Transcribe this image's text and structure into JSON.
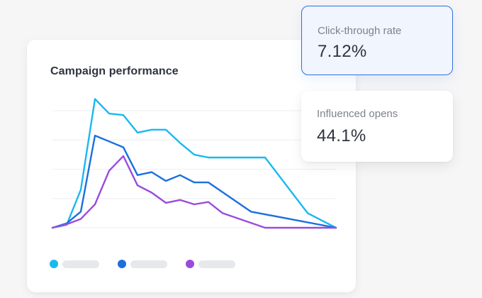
{
  "card": {
    "title": "Campaign performance"
  },
  "chart_data": {
    "type": "line",
    "title": "Campaign performance",
    "xlabel": "",
    "ylabel": "",
    "x": [
      0,
      1,
      2,
      3,
      4,
      5,
      6,
      7,
      8,
      9,
      10,
      11,
      12,
      13,
      14,
      15,
      16,
      17,
      18,
      19,
      20
    ],
    "ylim": [
      0,
      4
    ],
    "grid": true,
    "series": [
      {
        "color": "#1ab8f0",
        "values": [
          0,
          0.1,
          1.3,
          4.4,
          3.9,
          3.85,
          3.25,
          3.35,
          3.35,
          2.9,
          2.5,
          2.4,
          2.4,
          2.4,
          2.4,
          2.4,
          null,
          null,
          0.5,
          0.25,
          0
        ]
      },
      {
        "color": "#1a6fe0",
        "values": [
          0,
          0.15,
          0.55,
          3.15,
          2.95,
          2.75,
          1.8,
          1.9,
          1.6,
          1.8,
          1.55,
          1.55,
          null,
          null,
          0.55,
          null,
          null,
          null,
          null,
          null,
          0
        ]
      },
      {
        "color": "#9a4bdb",
        "values": [
          0,
          0.12,
          0.3,
          0.8,
          1.95,
          2.45,
          1.45,
          1.2,
          0.85,
          0.95,
          0.8,
          0.88,
          0.5,
          null,
          null,
          0,
          null,
          null,
          null,
          null,
          0
        ]
      }
    ],
    "legend": "bottom-left"
  },
  "legend": [
    {
      "color": "#1ab8f0"
    },
    {
      "color": "#1a6fe0"
    },
    {
      "color": "#9a4bdb"
    }
  ],
  "stats": {
    "ctr": {
      "label": "Click-through rate",
      "value": "7.12%"
    },
    "opens": {
      "label": "Influenced opens",
      "value": "44.1%"
    }
  }
}
